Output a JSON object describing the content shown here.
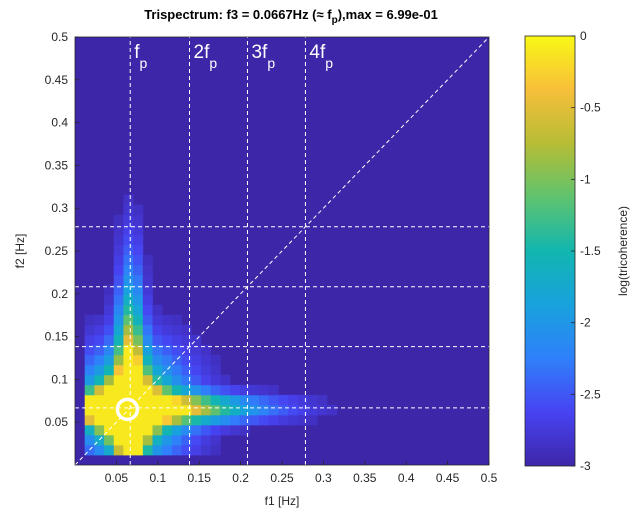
{
  "chart_data": {
    "type": "heatmap",
    "title": "Trispectrum: f3 = 0.0667Hz (≈ f",
    "title_sub": "p",
    "title_tail": "),max = 6.99e-01",
    "xlabel": "f1 [Hz]",
    "ylabel": "f2 [Hz]",
    "xlim": [
      0,
      0.5
    ],
    "ylim": [
      0,
      0.5
    ],
    "x_ticks": [
      "0.05",
      "0.1",
      "0.15",
      "0.2",
      "0.25",
      "0.3",
      "0.35",
      "0.4",
      "0.45",
      "0.5"
    ],
    "y_ticks": [
      "0.05",
      "0.1",
      "0.15",
      "0.2",
      "0.25",
      "0.3",
      "0.35",
      "0.4",
      "0.45",
      "0.5"
    ],
    "colorbar": {
      "label": "log(tricoherence)",
      "range": [
        -3,
        0
      ],
      "ticks": [
        "0",
        "-0.5",
        "-1",
        "-1.5",
        "-2",
        "-2.5",
        "-3"
      ],
      "colors": [
        "#3e26a8",
        "#4743f2",
        "#2f80fa",
        "#17a2dd",
        "#12b6b0",
        "#5fc36e",
        "#b6bd35",
        "#f7bf3a",
        "#f9f815"
      ]
    },
    "background_value": -3,
    "cell_size_hz": 0.0117,
    "harmonic_lines": [
      {
        "label": "f",
        "sub": "p",
        "freq": 0.0667
      },
      {
        "label": "2f",
        "sub": "p",
        "freq": 0.1383
      },
      {
        "label": "3f",
        "sub": "p",
        "freq": 0.2083
      },
      {
        "label": "4f",
        "sub": "p",
        "freq": 0.2783
      }
    ],
    "diagonal": "f2 = f1",
    "marker": {
      "f1": 0.0633,
      "f2": 0.065,
      "label": "max"
    },
    "grid": false
  }
}
